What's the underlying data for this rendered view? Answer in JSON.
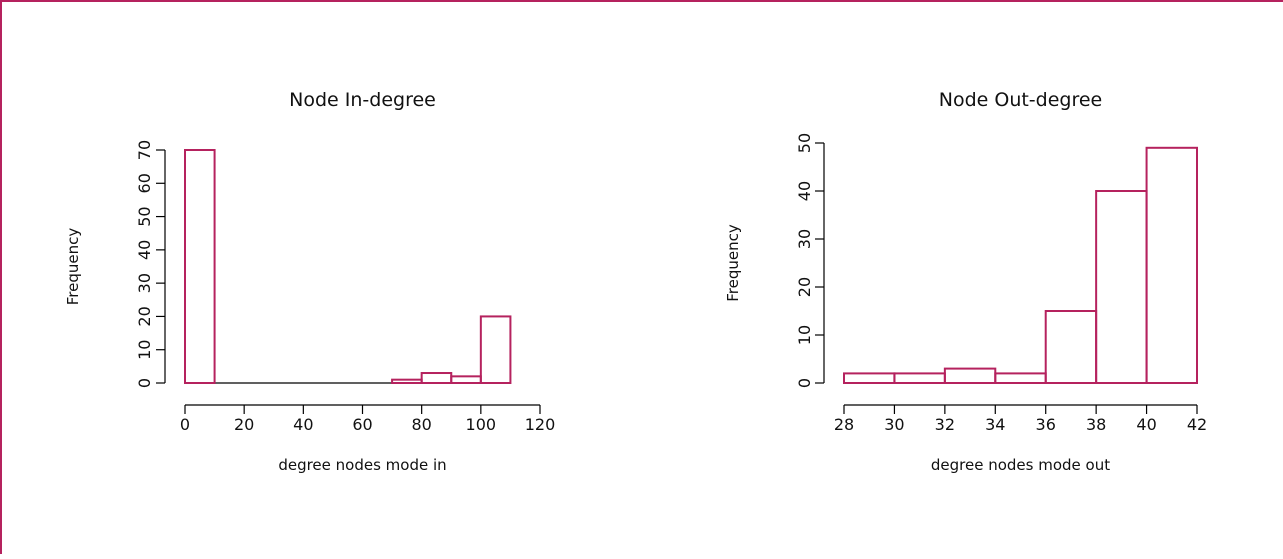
{
  "colors": {
    "accent": "#b5225e",
    "axis": "#000000",
    "background": "#ffffff"
  },
  "chart_data": [
    {
      "type": "bar",
      "title": "Node In-degree",
      "xlabel": "degree nodes mode in",
      "ylabel": "Frequency",
      "xlim": [
        0,
        120
      ],
      "ylim": [
        0,
        70
      ],
      "x_ticks": [
        0,
        20,
        40,
        60,
        80,
        100,
        120
      ],
      "y_ticks": [
        0,
        10,
        20,
        30,
        40,
        50,
        60,
        70
      ],
      "bins": [
        {
          "x0": 0,
          "x1": 10,
          "value": 70
        },
        {
          "x0": 10,
          "x1": 20,
          "value": 0
        },
        {
          "x0": 20,
          "x1": 30,
          "value": 0
        },
        {
          "x0": 30,
          "x1": 40,
          "value": 0
        },
        {
          "x0": 40,
          "x1": 50,
          "value": 0
        },
        {
          "x0": 50,
          "x1": 60,
          "value": 0
        },
        {
          "x0": 60,
          "x1": 70,
          "value": 0
        },
        {
          "x0": 70,
          "x1": 80,
          "value": 1
        },
        {
          "x0": 80,
          "x1": 90,
          "value": 3
        },
        {
          "x0": 90,
          "x1": 100,
          "value": 2
        },
        {
          "x0": 100,
          "x1": 110,
          "value": 20
        }
      ],
      "grid": false,
      "legend": "none"
    },
    {
      "type": "bar",
      "title": "Node Out-degree",
      "xlabel": "degree nodes mode out",
      "ylabel": "Frequency",
      "xlim": [
        28,
        42
      ],
      "ylim": [
        0,
        50
      ],
      "x_ticks": [
        28,
        30,
        32,
        34,
        36,
        38,
        40,
        42
      ],
      "y_ticks": [
        0,
        10,
        20,
        30,
        40,
        50
      ],
      "bins": [
        {
          "x0": 28,
          "x1": 30,
          "value": 2
        },
        {
          "x0": 30,
          "x1": 32,
          "value": 2
        },
        {
          "x0": 32,
          "x1": 34,
          "value": 3
        },
        {
          "x0": 34,
          "x1": 36,
          "value": 2
        },
        {
          "x0": 36,
          "x1": 38,
          "value": 15
        },
        {
          "x0": 38,
          "x1": 40,
          "value": 40
        },
        {
          "x0": 40,
          "x1": 42,
          "value": 49
        }
      ],
      "grid": false,
      "legend": "none"
    }
  ]
}
